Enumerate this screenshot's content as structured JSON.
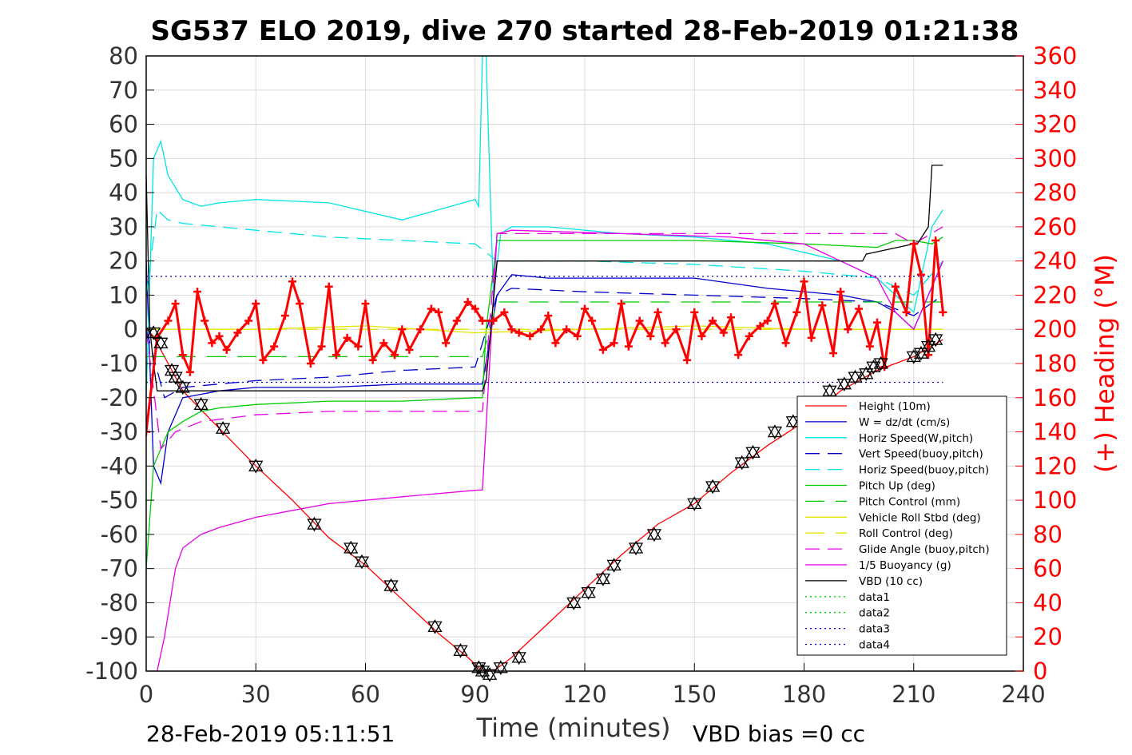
{
  "chart_data": {
    "type": "line",
    "title": "SG537 ELO 2019, dive 270 started 28-Feb-2019 01:21:38",
    "xlabel": "Time (minutes)",
    "ylabel": "",
    "y2label": "(+) Heading (°M)",
    "xlim": [
      0,
      240
    ],
    "ylim": [
      -100,
      80
    ],
    "y2lim": [
      0,
      360
    ],
    "x_ticks": [
      "0",
      "30",
      "60",
      "90",
      "120",
      "150",
      "180",
      "210",
      "240"
    ],
    "y_ticks": [
      "80",
      "70",
      "60",
      "50",
      "40",
      "30",
      "20",
      "10",
      "0",
      "-10",
      "-20",
      "-30",
      "-40",
      "-50",
      "-60",
      "-70",
      "-80",
      "-90",
      "-100"
    ],
    "y2_ticks": [
      "360",
      "340",
      "320",
      "300",
      "280",
      "260",
      "240",
      "220",
      "200",
      "180",
      "160",
      "140",
      "120",
      "100",
      "80",
      "60",
      "40",
      "20",
      "0"
    ],
    "grid": true,
    "legend_position": "bottom-right",
    "footer_left": "28-Feb-2019 05:11:51",
    "footer_right": "VBD bias =0 cc",
    "colors": {
      "height": "#ff0000",
      "w": "#0000cc",
      "hspeed": "#00e5e5",
      "vspeed_b": "#0000cc",
      "hspeed_b": "#00e5e5",
      "pitch": "#00cc00",
      "pitch_ctl": "#00cc00",
      "roll": "#e5e500",
      "roll_ctl": "#e5e500",
      "glide": "#e500e5",
      "buoy": "#e500e5",
      "vbd": "#000000",
      "heading": "#ff0000",
      "data": "#00cc00",
      "data_b": "#0000cc"
    },
    "series": [
      {
        "name": "Height (10m)",
        "color": "#ff0000",
        "dash": "",
        "x": [
          0,
          2,
          5,
          10,
          20,
          30,
          40,
          50,
          60,
          70,
          80,
          88,
          92,
          95,
          100,
          110,
          120,
          130,
          140,
          150,
          160,
          170,
          180,
          190,
          200,
          210,
          218
        ],
        "y": [
          0,
          -2,
          -8,
          -18,
          -29,
          -40,
          -50,
          -61,
          -69,
          -79,
          -89,
          -96,
          -100,
          -100,
          -96,
          -86,
          -76,
          -66,
          -57,
          -51,
          -42,
          -34,
          -27,
          -18,
          -12,
          -8,
          -3
        ]
      },
      {
        "name": "W = dz/dt (cm/s)",
        "color": "#0000cc",
        "dash": "",
        "x": [
          0,
          2,
          4,
          6,
          10,
          15,
          20,
          30,
          50,
          70,
          90,
          92,
          96,
          100,
          110,
          130,
          150,
          170,
          190,
          200,
          205,
          210,
          218
        ],
        "y": [
          20,
          -40,
          -45,
          -30,
          -20,
          -19,
          -18,
          -17,
          -17,
          -16,
          -16,
          -16,
          10,
          16,
          15,
          15,
          15,
          12,
          10,
          8,
          5,
          0,
          20
        ]
      },
      {
        "name": "Horiz Speed(W,pitch)",
        "color": "#00e5e5",
        "dash": "",
        "x": [
          0,
          2,
          4,
          6,
          10,
          15,
          20,
          30,
          50,
          70,
          90,
          91,
          92,
          93,
          95,
          97,
          100,
          110,
          130,
          150,
          170,
          190,
          200,
          205,
          210,
          215,
          218
        ],
        "y": [
          -20,
          50,
          55,
          45,
          38,
          36,
          37,
          38,
          37,
          32,
          38,
          36,
          80,
          80,
          10,
          28,
          30,
          30,
          28,
          27,
          25,
          20,
          15,
          10,
          5,
          30,
          35
        ]
      },
      {
        "name": "Vert Speed(buoy,pitch)",
        "color": "#0000cc",
        "dash": "18,10",
        "x": [
          0,
          5,
          10,
          20,
          30,
          50,
          70,
          90,
          96,
          100,
          120,
          150,
          180,
          200,
          210,
          218
        ],
        "y": [
          0,
          -20,
          -17,
          -16,
          -15,
          -14,
          -12,
          -11,
          10,
          12,
          11,
          10,
          9,
          8,
          4,
          10
        ]
      },
      {
        "name": "Horiz Speed(buoy,pitch)",
        "color": "#00e5e5",
        "dash": "18,10",
        "x": [
          0,
          3,
          6,
          10,
          20,
          30,
          50,
          70,
          90,
          96,
          100,
          120,
          150,
          180,
          200,
          210,
          218
        ],
        "y": [
          10,
          35,
          32,
          31,
          30,
          29,
          27,
          26,
          25,
          20,
          20,
          20,
          19,
          17,
          15,
          10,
          20
        ]
      },
      {
        "name": "Pitch Up (deg)",
        "color": "#00cc00",
        "dash": "",
        "x": [
          0,
          2,
          4,
          6,
          10,
          15,
          20,
          30,
          50,
          70,
          90,
          92,
          93,
          96,
          100,
          120,
          150,
          180,
          200,
          205,
          210,
          215,
          218
        ],
        "y": [
          -70,
          -40,
          -35,
          -30,
          -27,
          -24,
          -23,
          -22,
          -21,
          -21,
          -20,
          -20,
          0,
          26,
          26,
          26,
          26,
          25,
          24,
          26,
          26,
          25,
          27
        ]
      },
      {
        "name": "Pitch Control (mm)",
        "color": "#00cc00",
        "dash": "24,14",
        "x": [
          0,
          10,
          50,
          90,
          92,
          96,
          210,
          218
        ],
        "y": [
          -8,
          -8,
          -8,
          -8,
          -8,
          8,
          8,
          8
        ]
      },
      {
        "name": "Vehicle Roll Stbd (deg)",
        "color": "#e5e500",
        "dash": "",
        "x": [
          0,
          30,
          60,
          90,
          120,
          150,
          180,
          210,
          218
        ],
        "y": [
          0,
          0,
          1,
          -1,
          0,
          1,
          0,
          0,
          0
        ]
      },
      {
        "name": "Roll Control (deg)",
        "color": "#e5e500",
        "dash": "24,14",
        "x": [
          0,
          30,
          60,
          90,
          120,
          150,
          180,
          210,
          218
        ],
        "y": [
          0,
          0,
          0,
          0,
          0,
          0,
          0,
          0,
          0
        ]
      },
      {
        "name": "Glide Angle (buoy,pitch)",
        "color": "#e500e5",
        "dash": "18,10",
        "x": [
          0,
          4,
          8,
          15,
          30,
          50,
          70,
          90,
          92,
          96,
          100,
          130,
          160,
          190,
          205,
          210,
          218
        ],
        "y": [
          0,
          -35,
          -30,
          -27,
          -25,
          -24,
          -24,
          -24,
          -24,
          28,
          28,
          28,
          28,
          28,
          28,
          25,
          30
        ]
      },
      {
        "name": "1/5 Buoyancy (g)",
        "color": "#e500e5",
        "dash": "",
        "x": [
          0,
          3,
          5,
          8,
          10,
          15,
          20,
          30,
          50,
          70,
          91,
          92,
          96,
          100,
          130,
          160,
          180,
          190,
          200,
          205,
          210,
          218
        ],
        "y": [
          -100,
          -100,
          -90,
          -70,
          -64,
          -60,
          -58,
          -55,
          -51,
          -49,
          -47,
          -47,
          28,
          29,
          28,
          27,
          25,
          20,
          15,
          5,
          0,
          20
        ]
      },
      {
        "name": "VBD (10 cc)",
        "color": "#000000",
        "dash": "",
        "x": [
          0,
          1,
          2,
          3,
          4,
          5,
          92,
          93,
          96,
          150,
          150.5,
          170,
          196,
          197,
          210,
          211,
          214,
          215,
          218
        ],
        "y": [
          45,
          0,
          -10,
          -18,
          -18,
          -18,
          -18,
          -15,
          20,
          20,
          20,
          20,
          20,
          22,
          25,
          25,
          30,
          48,
          48
        ]
      },
      {
        "name": "data1",
        "color": "#00cc00",
        "dash": "2,4",
        "x": [],
        "y": []
      },
      {
        "name": "data2",
        "color": "#00cc00",
        "dash": "2,4",
        "x": [],
        "y": []
      },
      {
        "name": "data3",
        "color": "#0000cc",
        "dash": "2,4",
        "x": [
          0,
          218
        ],
        "y": [
          15.5,
          15.5
        ]
      },
      {
        "name": "data4",
        "color": "#0000cc",
        "dash": "2,4",
        "x": [
          0,
          218
        ],
        "y": [
          -15.5,
          -15.5
        ]
      }
    ],
    "heading_series": {
      "name": "(+) Heading (°M)",
      "color": "#ff0000",
      "x": [
        0,
        3,
        6,
        8,
        10,
        12,
        14,
        16,
        18,
        20,
        22,
        25,
        28,
        30,
        32,
        35,
        38,
        40,
        42,
        45,
        48,
        50,
        52,
        55,
        58,
        60,
        62,
        65,
        68,
        70,
        72,
        75,
        78,
        80,
        82,
        85,
        88,
        90,
        92,
        95,
        98,
        100,
        102,
        105,
        108,
        110,
        112,
        115,
        118,
        120,
        122,
        125,
        128,
        130,
        132,
        135,
        138,
        140,
        142,
        145,
        148,
        150,
        152,
        155,
        158,
        160,
        162,
        165,
        168,
        170,
        172,
        175,
        178,
        180,
        182,
        185,
        188,
        190,
        192,
        195,
        198,
        200,
        202,
        205,
        208,
        210,
        212,
        214,
        216,
        218
      ],
      "y": [
        140,
        195,
        205,
        215,
        185,
        175,
        222,
        205,
        192,
        196,
        188,
        198,
        205,
        215,
        182,
        190,
        208,
        228,
        215,
        180,
        190,
        225,
        185,
        195,
        190,
        215,
        182,
        192,
        185,
        200,
        188,
        200,
        212,
        210,
        192,
        205,
        216,
        212,
        205,
        205,
        210,
        200,
        198,
        196,
        200,
        208,
        192,
        200,
        196,
        212,
        205,
        188,
        192,
        215,
        190,
        205,
        196,
        210,
        192,
        200,
        182,
        210,
        196,
        205,
        198,
        207,
        185,
        196,
        202,
        205,
        215,
        192,
        210,
        228,
        195,
        214,
        186,
        222,
        200,
        212,
        190,
        204,
        178,
        225,
        210,
        250,
        232,
        185,
        252,
        210
      ],
      "markers_x": [
        2,
        4,
        7,
        8,
        10,
        15,
        21,
        30,
        46,
        56,
        59,
        67,
        79,
        86,
        91,
        92,
        94,
        97,
        102,
        117,
        121,
        125,
        128,
        134,
        139,
        150,
        155,
        163,
        166,
        172,
        177,
        187,
        191,
        194,
        197,
        199,
        201,
        210,
        212,
        214,
        216
      ],
      "markers_y": [
        -1,
        -4,
        -12,
        -14,
        -17,
        -22,
        -29,
        -40,
        -57,
        -64,
        -68,
        -75,
        -87,
        -94,
        -99,
        -100,
        -101,
        -99,
        -96,
        -80,
        -77,
        -73,
        -69,
        -64,
        -60,
        -51,
        -46,
        -39,
        -36,
        -30,
        -27,
        -18,
        -16,
        -14,
        -13,
        -11,
        -10,
        -8,
        -7,
        -5,
        -3
      ]
    }
  }
}
